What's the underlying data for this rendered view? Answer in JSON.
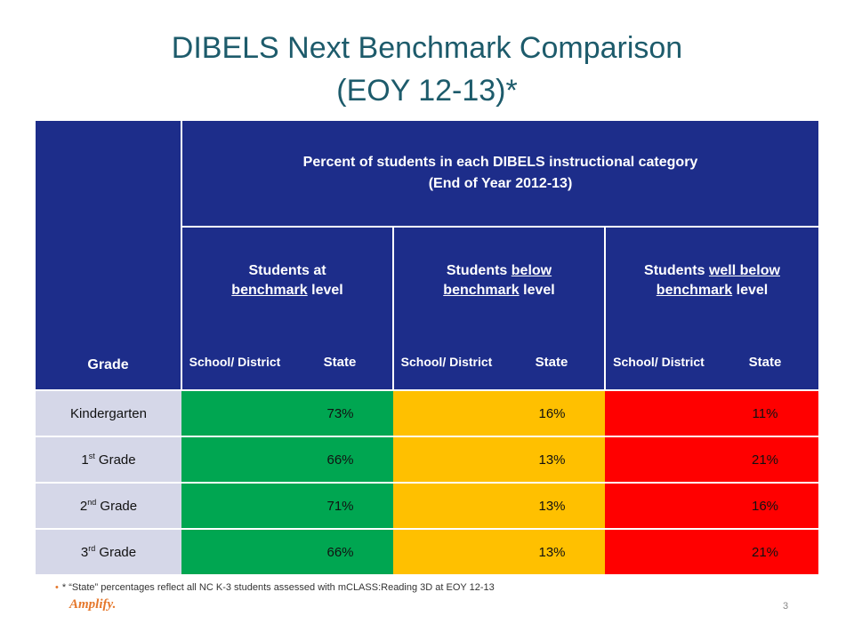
{
  "title": {
    "line1": "DIBELS Next Benchmark Comparison",
    "line2": "(EOY 12-13)*"
  },
  "table": {
    "grade_header": "Grade",
    "main_header_line1": "Percent of students in each DIBELS instructional category",
    "main_header_line2": "(End of Year 2012-13)",
    "groups": [
      {
        "prefix": "Students at",
        "underlined_1": "",
        "middle": "",
        "underlined_2": "benchmark",
        "suffix": " level",
        "line1": "Students at ",
        "line1_u": "",
        "line2_u": "benchmark",
        "line2_rest": " level"
      },
      {
        "line1": "Students ",
        "line1_u": "below",
        "line2_u": "benchmark",
        "line2_rest": " level"
      },
      {
        "line1": "Students ",
        "line1_u": "well below",
        "line2_u": "benchmark",
        "line2_rest": " level"
      }
    ],
    "col_school": "School/ District",
    "col_state": "State",
    "rows": [
      {
        "grade": "Kindergarten",
        "sup": "",
        "grade_rest": "",
        "at_state": "73%",
        "below_state": "16%",
        "well_below_state": "11%"
      },
      {
        "grade": "1",
        "sup": "st",
        "grade_rest": " Grade",
        "at_state": "66%",
        "below_state": "13%",
        "well_below_state": "21%"
      },
      {
        "grade": "2",
        "sup": "nd",
        "grade_rest": " Grade",
        "at_state": "71%",
        "below_state": "13%",
        "well_below_state": "16%"
      },
      {
        "grade": "3",
        "sup": "rd",
        "grade_rest": " Grade",
        "at_state": "66%",
        "below_state": "13%",
        "well_below_state": "21%"
      }
    ]
  },
  "footnote": "* “State”  percentages reflect all NC K-3 students assessed with mCLASS:Reading 3D at EOY 12-13",
  "logo": "Amplify.",
  "page_number": "3",
  "colors": {
    "title": "#1d5b6b",
    "header_bg": "#1d2d8a",
    "grade_bg": "#d5d7e8",
    "at_benchmark": "#00a651",
    "below_benchmark": "#ffc000",
    "well_below_benchmark": "#ff0000",
    "accent": "#e5772b"
  }
}
